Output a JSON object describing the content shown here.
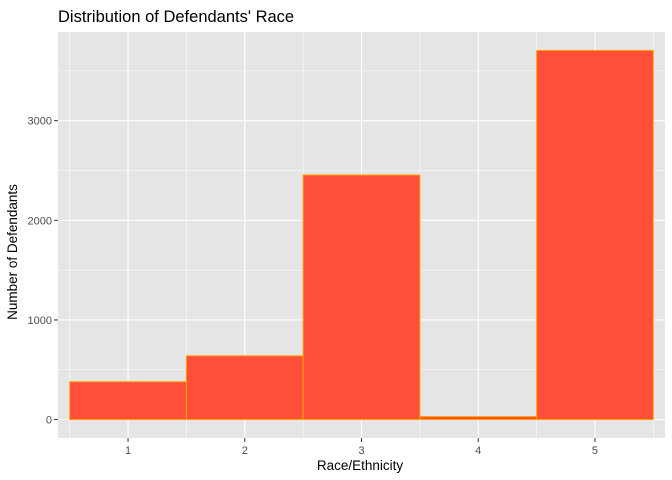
{
  "chart_data": {
    "type": "bar",
    "title": "Distribution of Defendants' Race",
    "xlabel": "Race/Ethnicity",
    "ylabel": "Number of Defendants",
    "categories": [
      "1",
      "2",
      "3",
      "4",
      "5"
    ],
    "values": [
      380,
      640,
      2455,
      30,
      3705
    ],
    "x_ticks": [
      "1",
      "2",
      "3",
      "4",
      "5"
    ],
    "y_ticks": [
      0,
      1000,
      2000,
      3000
    ],
    "ylim": [
      -185,
      3890
    ],
    "grid": true,
    "legend": "none",
    "colors": {
      "bar_fill": "#FF4F3B",
      "bar_outline": "#FFA500",
      "panel_background": "#E5E5E5",
      "gridline": "#FFFFFF"
    }
  }
}
